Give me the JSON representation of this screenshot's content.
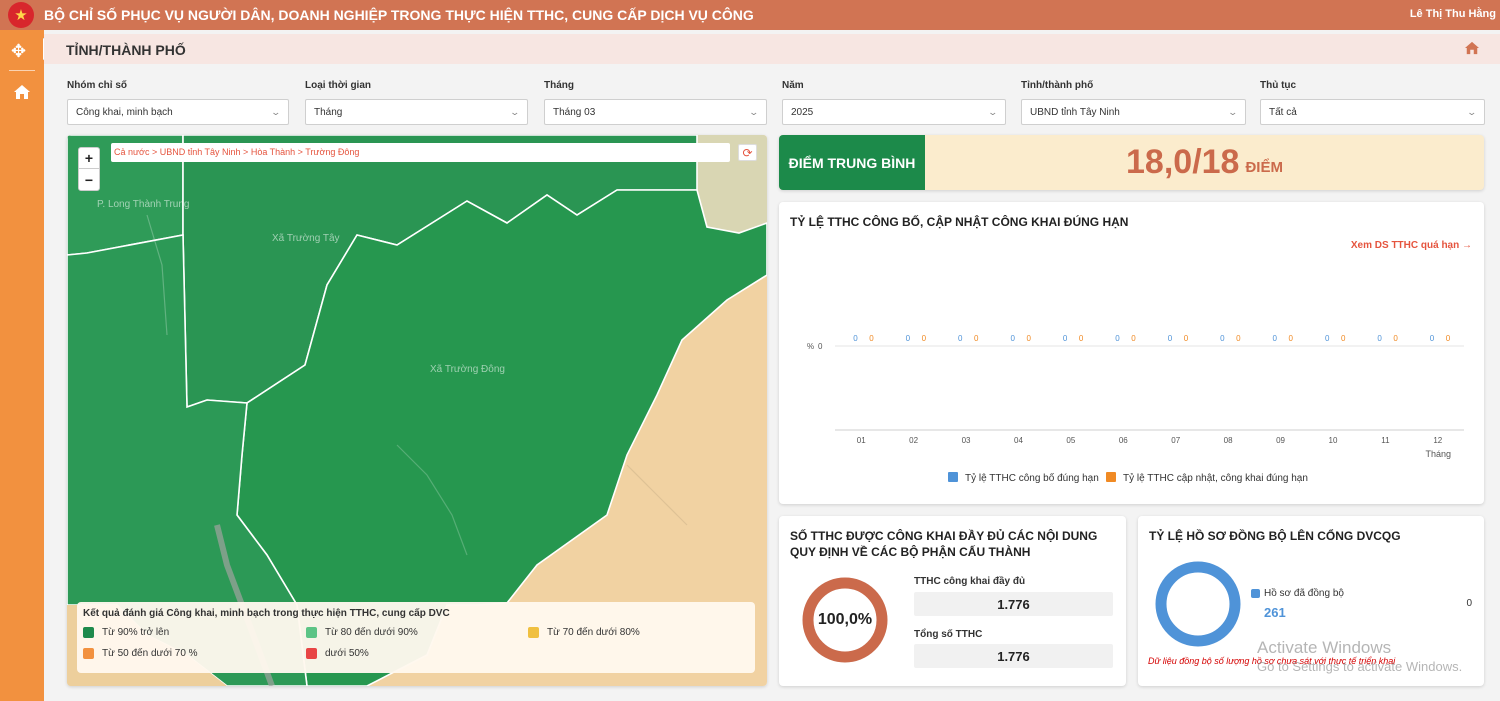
{
  "header": {
    "title": "BỘ CHỈ SỐ PHỤC VỤ NGƯỜI DÂN, DOANH NGHIỆP TRONG THỰC HIỆN TTHC, CUNG CẤP DỊCH VỤ CÔNG",
    "user": "Lê Thị Thu Hằng",
    "logo_icon": "national-emblem-icon"
  },
  "page": {
    "title": "TỈNH/THÀNH PHỐ"
  },
  "filters": [
    {
      "label": "Nhóm chỉ số",
      "value": "Công khai, minh bạch"
    },
    {
      "label": "Loại thời gian",
      "value": "Tháng"
    },
    {
      "label": "Tháng",
      "value": "Tháng 03"
    },
    {
      "label": "Năm",
      "value": "2025"
    },
    {
      "label": "Tỉnh/thành phố",
      "value": "UBND tỉnh Tây Ninh"
    },
    {
      "label": "Thủ tục",
      "value": "Tất cả"
    }
  ],
  "map": {
    "breadcrumb": "Cả nước > UBND tỉnh Tây Ninh > Hòa Thành > Trường Đông",
    "zoom_in": "+",
    "zoom_out": "−",
    "labels": [
      "P. Long Thành Trung",
      "Xã Trường Tây",
      "Xã Trường Đông"
    ],
    "legend": {
      "title": "Kết quả đánh giá Công khai, minh bạch trong thực hiện TTHC, cung cấp DVC",
      "items": [
        {
          "label": "Từ 90% trở lên",
          "color": "#1e8a4c"
        },
        {
          "label": "Từ 80 đến dưới 90%",
          "color": "#5cc486"
        },
        {
          "label": "Từ 70 đến dưới 80%",
          "color": "#f0c040"
        },
        {
          "label": "Từ 50 đến dưới 70 %",
          "color": "#f2913f"
        },
        {
          "label": "dưới 50%",
          "color": "#e84545"
        }
      ]
    }
  },
  "score": {
    "label": "ĐIỂM TRUNG BÌNH",
    "value": "18,0/18",
    "unit": "ĐIỂM"
  },
  "chart_panel": {
    "title": "TỶ LỆ TTHC CÔNG BỐ, CẬP NHẬT CÔNG KHAI ĐÚNG HẠN",
    "link": "Xem DS TTHC quá hạn →"
  },
  "chart_data": {
    "type": "bar",
    "categories": [
      "01",
      "02",
      "03",
      "04",
      "05",
      "06",
      "07",
      "08",
      "09",
      "10",
      "11",
      "12"
    ],
    "series": [
      {
        "name": "Tỷ lệ TTHC công bố đúng hạn",
        "color": "#4f93d8",
        "values": [
          0,
          0,
          0,
          0,
          0,
          0,
          0,
          0,
          0,
          0,
          0,
          0
        ]
      },
      {
        "name": "Tỷ lệ TTHC cập nhật, công khai đúng hạn",
        "color": "#f08a24",
        "values": [
          0,
          0,
          0,
          0,
          0,
          0,
          0,
          0,
          0,
          0,
          0,
          0
        ]
      }
    ],
    "xlabel": "Tháng",
    "ylabel": "%",
    "ytick": "0",
    "legend": "bottom"
  },
  "published": {
    "title": "SỐ TTHC ĐƯỢC CÔNG KHAI ĐẦY ĐỦ CÁC NỘI DUNG QUY ĐỊNH VỀ CÁC BỘ PHẬN CẤU THÀNH",
    "percent_label": "100,0%",
    "percent_value": 100,
    "color": "#cb6a4b",
    "full_label": "TTHC công khai đầy đủ",
    "full_value": "1.776",
    "total_label": "Tổng số TTHC",
    "total_value": "1.776"
  },
  "sync": {
    "title": "TỶ LỆ HỒ SƠ ĐỒNG BỘ LÊN CỔNG DVCQG",
    "legend_label": "Hồ sơ đã đồng bộ",
    "count": "261",
    "other": "0",
    "note": "Dữ liệu đồng bộ số lượng hồ sơ chưa sát với thực tế triển khai",
    "color": "#4f93d8"
  },
  "watermark": {
    "line1": "Activate Windows",
    "line2": "Go to Settings to activate Windows."
  }
}
